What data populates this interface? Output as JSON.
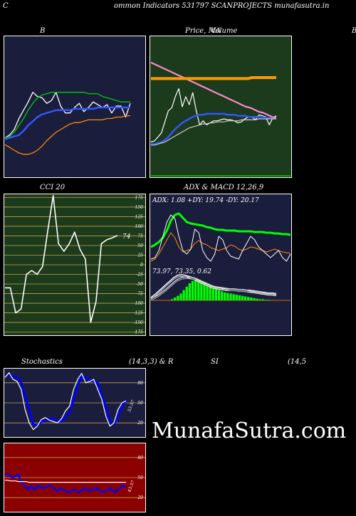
{
  "header": {
    "left_letter": "C",
    "title": "ommon  Indicators 531797 SCANPROJECTS munafasutra.in"
  },
  "watermark": "MunafaSutra.com",
  "chart_data": [
    {
      "type": "line",
      "panel": "bollinger",
      "title": "B",
      "series": [
        {
          "color": "#ffffff",
          "values": [
            5.0,
            5.2,
            5.6,
            6.4,
            7.0,
            7.6,
            8.3,
            8.0,
            7.9,
            7.5,
            7.7,
            8.3,
            7.3,
            6.8,
            6.8,
            7.2,
            7.5,
            6.9,
            7.2,
            7.6,
            7.4,
            7.2,
            7.4,
            6.8,
            7.3,
            7.3,
            6.5,
            7.5
          ]
        },
        {
          "color": "#00cc00",
          "values": [
            5.0,
            5.1,
            5.4,
            5.9,
            6.4,
            7.0,
            7.5,
            7.9,
            8.1,
            8.2,
            8.3,
            8.3,
            8.3,
            8.3,
            8.3,
            8.3,
            8.3,
            8.3,
            8.2,
            8.2,
            8.2,
            8.0,
            7.9,
            7.8,
            7.7,
            7.6,
            7.6,
            7.6
          ]
        },
        {
          "color": "#3355ff",
          "values": [
            4.9,
            5.0,
            5.1,
            5.2,
            5.5,
            5.9,
            6.2,
            6.5,
            6.7,
            6.8,
            6.9,
            7.0,
            7.0,
            7.0,
            7.0,
            7.1,
            7.1,
            7.1,
            7.1,
            7.1,
            7.2,
            7.2,
            7.2,
            7.2,
            7.2,
            7.2,
            7.2,
            7.2
          ]
        },
        {
          "color": "#ff8800",
          "values": [
            4.5,
            4.3,
            4.1,
            3.9,
            3.8,
            3.8,
            3.9,
            4.1,
            4.4,
            4.8,
            5.1,
            5.4,
            5.6,
            5.8,
            6.0,
            6.1,
            6.1,
            6.2,
            6.3,
            6.3,
            6.3,
            6.3,
            6.4,
            6.4,
            6.5,
            6.5,
            6.6,
            6.6
          ]
        }
      ]
    },
    {
      "type": "line",
      "panel": "price_ma",
      "title": "Price,  MA",
      "overlay_text": "Volume",
      "series": [
        {
          "color": "#ffffff",
          "values": [
            5.5,
            5.6,
            6.0,
            6.4,
            7.5,
            8.6,
            8.9,
            10.0,
            10.8,
            9.0,
            10.0,
            9.2,
            10.4,
            8.6,
            7.2,
            7.6,
            7.2,
            7.4,
            7.6,
            7.6,
            7.7,
            7.8,
            7.7,
            7.7,
            7.6,
            7.4,
            7.5,
            7.8,
            8.0,
            8.0,
            7.7,
            8.2,
            8.1,
            8.0,
            7.2,
            7.9,
            8.1
          ]
        },
        {
          "color": "#3355ff",
          "values": [
            5.3,
            5.3,
            5.4,
            5.5,
            5.7,
            6.0,
            6.4,
            6.8,
            7.1,
            7.4,
            7.6,
            7.8,
            8.0,
            8.1,
            8.2,
            8.2,
            8.3,
            8.3,
            8.3,
            8.3,
            8.3,
            8.3,
            8.2,
            8.2,
            8.2,
            8.1,
            8.1,
            8.1,
            8.0,
            8.0,
            8.0,
            8.0,
            8.0,
            7.9,
            7.9,
            7.9,
            7.9
          ]
        },
        {
          "color": "#cccccc",
          "values": [
            5.2,
            5.2,
            5.3,
            5.4,
            5.5,
            5.7,
            5.9,
            6.1,
            6.3,
            6.5,
            6.7,
            6.9,
            7.0,
            7.1,
            7.2,
            7.3,
            7.3,
            7.4,
            7.4,
            7.5,
            7.5,
            7.5,
            7.6,
            7.6,
            7.6,
            7.6,
            7.7,
            7.7,
            7.7,
            7.7,
            7.7,
            7.8,
            7.8,
            7.8,
            7.8,
            7.8,
            7.8
          ]
        },
        {
          "color": "#ff88cc",
          "values": [
            13.4,
            13.2,
            13.0,
            12.8,
            12.6,
            12.4,
            12.2,
            12.0,
            11.8,
            11.6,
            11.4,
            11.2,
            11.0,
            10.8,
            10.6,
            10.4,
            10.2,
            10.0,
            9.8,
            9.6,
            9.4,
            9.2,
            9.0,
            8.9,
            8.7,
            8.5,
            8.4,
            8.2,
            8.0,
            7.9
          ]
        },
        {
          "color": "#ff9900",
          "values": [
            11.8,
            11.8,
            11.8,
            11.8,
            11.8,
            11.8,
            11.8,
            11.8,
            11.8,
            11.8,
            11.8,
            11.8,
            11.8,
            11.8,
            11.8,
            11.8,
            11.8,
            11.8,
            11.8,
            11.8,
            11.8,
            11.8,
            11.8,
            11.8,
            11.8,
            11.9,
            11.9,
            11.9,
            11.9,
            11.9,
            11.9,
            11.9
          ]
        }
      ]
    },
    {
      "type": "line",
      "panel": "cci",
      "title": "CCI 20",
      "yticks": [
        175,
        150,
        125,
        100,
        75,
        50,
        25,
        0,
        -25,
        -50,
        -75,
        -100,
        -125,
        -150,
        -175
      ],
      "ylim": [
        -185,
        185
      ],
      "last_label": "74",
      "values": [
        -60,
        -60,
        -125,
        -115,
        -25,
        -15,
        -25,
        -5,
        90,
        180,
        55,
        35,
        55,
        85,
        40,
        15,
        -150,
        -95,
        55,
        65,
        70,
        76
      ]
    },
    {
      "type": "line",
      "panel": "adx_macd",
      "title": "ADX  & MACD 12,26,9",
      "adx_text": "ADX: 1.08  +DY: 19.74  -DY: 20.17",
      "macd_text": "73.97,  73.35,  0.62",
      "adx_series": [
        {
          "color": "#00ff00",
          "values": [
            25,
            28,
            32,
            38,
            48,
            62,
            70,
            72,
            66,
            60,
            58,
            57,
            56,
            55,
            53,
            52,
            50,
            49,
            49,
            48,
            48,
            48,
            47,
            47,
            47,
            47,
            46,
            46,
            46,
            45,
            45,
            44,
            44,
            43,
            43,
            42
          ]
        },
        {
          "color": "#ff8800",
          "values": [
            5,
            8,
            15,
            25,
            35,
            45,
            38,
            25,
            18,
            20,
            22,
            30,
            34,
            30,
            28,
            24,
            22,
            20,
            22,
            24,
            28,
            26,
            22,
            20,
            22,
            25,
            24,
            22,
            20,
            18,
            20,
            22,
            20,
            18,
            17,
            16
          ]
        },
        {
          "color": "#ffffff",
          "values": [
            8,
            10,
            20,
            40,
            60,
            70,
            65,
            40,
            20,
            15,
            22,
            50,
            45,
            20,
            10,
            5,
            15,
            40,
            35,
            20,
            12,
            10,
            8,
            20,
            30,
            40,
            35,
            25,
            20,
            15,
            10,
            15,
            20,
            10,
            5,
            15
          ]
        }
      ],
      "macd_histogram": [
        2,
        5,
        8,
        12,
        18,
        24,
        30,
        34,
        35,
        34,
        32,
        30,
        27,
        25,
        22,
        20,
        18,
        16,
        14,
        13,
        12,
        11,
        10,
        9,
        8,
        7,
        6,
        5,
        4,
        3,
        2,
        2,
        1,
        1
      ],
      "macd_lines": [
        {
          "color": "#ffffff",
          "values": [
            5,
            10,
            16,
            22,
            28,
            34,
            40,
            44,
            45,
            44,
            42,
            40,
            37,
            34,
            31,
            28,
            25,
            23,
            22,
            21,
            20,
            20,
            20,
            19,
            19,
            18,
            17,
            16,
            15,
            14,
            13,
            12,
            12,
            11
          ]
        },
        {
          "color": "#cccccc",
          "values": [
            3,
            6,
            10,
            15,
            20,
            26,
            32,
            37,
            40,
            41,
            41,
            40,
            38,
            35,
            32,
            29,
            26,
            24,
            23,
            22,
            21,
            20,
            20,
            19,
            19,
            18,
            18,
            17,
            16,
            15,
            14,
            13,
            13,
            12
          ]
        }
      ]
    },
    {
      "type": "line",
      "panel": "stochastics",
      "title": "Stochastics",
      "params": "(14,3,3) & R",
      "yticks": [
        80,
        50,
        20
      ],
      "ylim": [
        0,
        100
      ],
      "last_label": "53.57",
      "series": [
        {
          "color": "#0000ff",
          "values": [
            90,
            92,
            90,
            88,
            80,
            60,
            40,
            18,
            16,
            22,
            24,
            26,
            26,
            24,
            22,
            30,
            35,
            55,
            75,
            90,
            88,
            85,
            82,
            80,
            60,
            45,
            20,
            18,
            30,
            45,
            54
          ]
        },
        {
          "color": "#ffffff",
          "values": [
            88,
            95,
            85,
            82,
            70,
            40,
            20,
            10,
            15,
            25,
            28,
            24,
            22,
            20,
            26,
            38,
            45,
            70,
            85,
            94,
            80,
            82,
            85,
            70,
            55,
            30,
            15,
            20,
            40,
            50,
            53
          ]
        }
      ]
    },
    {
      "type": "line",
      "panel": "rsi",
      "title": "SI",
      "params": "(14,5",
      "yticks": [
        80,
        50,
        20
      ],
      "ylim": [
        0,
        100
      ],
      "last_label": "43.57",
      "series": [
        {
          "color": "#0000ff",
          "values": [
            55,
            55,
            52,
            50,
            52,
            55,
            45,
            40,
            35,
            32,
            38,
            32,
            35,
            38,
            34,
            35,
            36,
            38,
            36,
            32,
            30,
            34,
            32,
            30,
            28,
            30,
            32,
            30,
            28,
            30,
            34,
            32,
            30,
            32,
            33,
            34,
            30,
            28,
            30,
            32,
            34,
            30,
            28,
            32,
            35,
            38,
            36
          ]
        },
        {
          "color": "#ffffff",
          "values": [
            46,
            46,
            45,
            45,
            45,
            44,
            44,
            44,
            44,
            43,
            43,
            43,
            43,
            43,
            43,
            43,
            43,
            43,
            43,
            43,
            43,
            43,
            43,
            43,
            43,
            43,
            43,
            43,
            43,
            43,
            43,
            43,
            43,
            43,
            43,
            43,
            43,
            43,
            43,
            43,
            43,
            43,
            43,
            43,
            43,
            43,
            43
          ]
        }
      ]
    }
  ]
}
